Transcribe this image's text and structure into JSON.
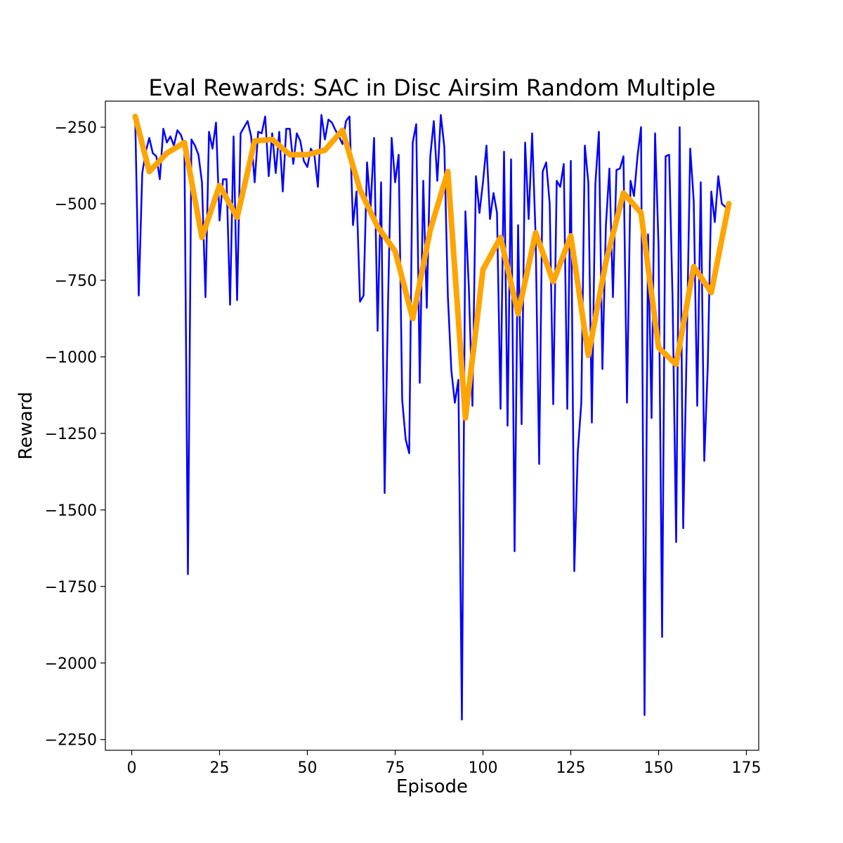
{
  "chart_data": {
    "type": "line",
    "title": "Eval Rewards: SAC in Disc Airsim Random Multiple",
    "xlabel": "Episode",
    "ylabel": "Reward",
    "xlim": [
      -7.5,
      178.5
    ],
    "ylim": [
      -2285,
      -165
    ],
    "xticks": [
      0,
      25,
      50,
      75,
      100,
      125,
      150,
      175
    ],
    "yticks": [
      -250,
      -500,
      -750,
      -1000,
      -1250,
      -1500,
      -1750,
      -2000,
      -2250
    ],
    "grid": false,
    "legend": "none",
    "series": [
      {
        "color": "#0000ff",
        "line_width": 2.5,
        "x": [
          1,
          2,
          3,
          4,
          5,
          6,
          7,
          8,
          9,
          10,
          11,
          12,
          13,
          14,
          15,
          16,
          17,
          18,
          19,
          20,
          21,
          22,
          23,
          24,
          25,
          26,
          27,
          28,
          29,
          30,
          31,
          32,
          33,
          34,
          35,
          36,
          37,
          38,
          39,
          40,
          41,
          42,
          43,
          44,
          45,
          46,
          47,
          48,
          49,
          50,
          51,
          52,
          53,
          54,
          55,
          56,
          57,
          58,
          59,
          60,
          61,
          62,
          63,
          64,
          65,
          66,
          67,
          68,
          69,
          70,
          71,
          72,
          73,
          74,
          75,
          76,
          77,
          78,
          79,
          80,
          81,
          82,
          83,
          84,
          85,
          86,
          87,
          88,
          89,
          90,
          91,
          92,
          93,
          94,
          95,
          96,
          97,
          98,
          99,
          100,
          101,
          102,
          103,
          104,
          105,
          106,
          107,
          108,
          109,
          110,
          111,
          112,
          113,
          114,
          115,
          116,
          117,
          118,
          119,
          120,
          121,
          122,
          123,
          124,
          125,
          126,
          127,
          128,
          129,
          130,
          131,
          132,
          133,
          134,
          135,
          136,
          137,
          138,
          139,
          140,
          141,
          142,
          143,
          144,
          145,
          146,
          147,
          148,
          149,
          150,
          151,
          152,
          153,
          154,
          155,
          156,
          157,
          158,
          159,
          160,
          161,
          162,
          163,
          164,
          165,
          166,
          167,
          168,
          169,
          170
        ],
        "y": [
          -225,
          -800,
          -400,
          -330,
          -285,
          -335,
          -345,
          -420,
          -255,
          -300,
          -280,
          -310,
          -260,
          -275,
          -310,
          -1710,
          -290,
          -310,
          -340,
          -430,
          -805,
          -265,
          -320,
          -235,
          -555,
          -420,
          -420,
          -830,
          -280,
          -815,
          -270,
          -250,
          -230,
          -280,
          -430,
          -265,
          -270,
          -215,
          -410,
          -270,
          -400,
          -265,
          -460,
          -255,
          -255,
          -370,
          -270,
          -295,
          -360,
          -380,
          -320,
          -340,
          -445,
          -210,
          -290,
          -225,
          -235,
          -260,
          -280,
          -305,
          -230,
          -215,
          -570,
          -460,
          -820,
          -800,
          -365,
          -515,
          -285,
          -915,
          -430,
          -1445,
          -810,
          -285,
          -430,
          -340,
          -1140,
          -1270,
          -1315,
          -300,
          -240,
          -1085,
          -425,
          -840,
          -345,
          -230,
          -425,
          -210,
          -315,
          -800,
          -1045,
          -1150,
          -1075,
          -2185,
          -525,
          -780,
          -1160,
          -410,
          -530,
          -430,
          -310,
          -550,
          -465,
          -530,
          -1170,
          -330,
          -1225,
          -355,
          -1635,
          -570,
          -1220,
          -300,
          -550,
          -270,
          -610,
          -1350,
          -395,
          -365,
          -500,
          -1155,
          -425,
          -445,
          -370,
          -1170,
          -360,
          -1700,
          -1310,
          -1150,
          -310,
          -430,
          -1215,
          -435,
          -265,
          -1040,
          -570,
          -385,
          -805,
          -390,
          -385,
          -345,
          -1150,
          -425,
          -475,
          -345,
          -250,
          -2170,
          -600,
          -1200,
          -270,
          -645,
          -1915,
          -345,
          -340,
          -820,
          -1605,
          -250,
          -1560,
          -970,
          -320,
          -490,
          -1160,
          -430,
          -1340,
          -1030,
          -460,
          -560,
          -410,
          -500,
          -510,
          -530
        ]
      },
      {
        "color": "#ffa500",
        "line_width": 8,
        "x": [
          1,
          5,
          10,
          15,
          20,
          25,
          30,
          35,
          40,
          45,
          50,
          55,
          60,
          65,
          70,
          75,
          80,
          85,
          90,
          95,
          100,
          105,
          110,
          115,
          120,
          125,
          130,
          135,
          140,
          145,
          150,
          155,
          160,
          165,
          170
        ],
        "y": [
          -215,
          -395,
          -335,
          -300,
          -610,
          -440,
          -545,
          -295,
          -290,
          -340,
          -340,
          -325,
          -260,
          -455,
          -575,
          -655,
          -875,
          -585,
          -395,
          -1200,
          -715,
          -610,
          -860,
          -595,
          -755,
          -605,
          -995,
          -690,
          -465,
          -530,
          -970,
          -1025,
          -705,
          -790,
          -500
        ]
      }
    ]
  }
}
